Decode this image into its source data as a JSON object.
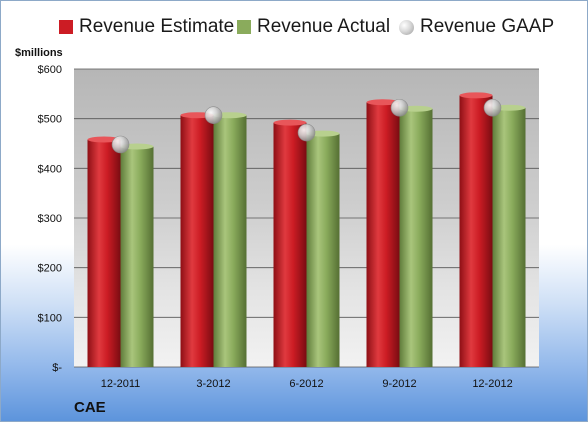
{
  "chart_data": {
    "type": "bar",
    "categories": [
      "12-2011",
      "3-2012",
      "6-2012",
      "9-2012",
      "12-2012"
    ],
    "series": [
      {
        "name": "Revenue Estimate",
        "values": [
          458,
          507,
          492,
          533,
          547
        ],
        "color": "#cc1c24",
        "kind": "bar"
      },
      {
        "name": "Revenue Actual",
        "values": [
          444,
          507,
          470,
          520,
          522
        ],
        "color": "#8aab5c",
        "kind": "bar"
      },
      {
        "name": "Revenue GAAP",
        "values": [
          448,
          507,
          472,
          522,
          522
        ],
        "color": "#c8c8c8",
        "kind": "marker"
      }
    ],
    "ylabel": "$millions",
    "ylim": [
      0,
      600
    ],
    "yticks": [
      0,
      100,
      200,
      300,
      400,
      500,
      600
    ],
    "ytick_labels": [
      "$-",
      "$100",
      "$200",
      "$300",
      "$400",
      "$500",
      "$600"
    ],
    "grid": true,
    "legend": "top",
    "company": "CAE"
  }
}
